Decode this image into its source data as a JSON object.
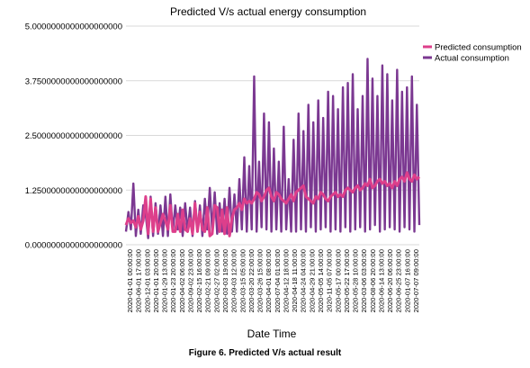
{
  "caption": "Figure 6. Predicted V/s actual result",
  "chart_data": {
    "type": "line",
    "title": "Predicted V/s actual energy consumption",
    "xlabel": "Date Time",
    "ylabel": "",
    "ylim": [
      0,
      5
    ],
    "yticks": [
      0,
      1.25,
      2.5,
      3.75,
      5
    ],
    "ytick_labels": [
      "0.0000000000000000000",
      "1.2500000000000000000",
      "2.5000000000000000000",
      "3.7500000000000000000",
      "5.0000000000000000000"
    ],
    "grid": true,
    "legend_position": "right",
    "x_tick_labels": [
      "2020-01-01 00:00:00",
      "2020-06-01 17:00:00",
      "2020-12-01 03:00:00",
      "2020-01-01 20:00:00",
      "2020-01-29 13:00:00",
      "2020-01-23 20:00:00",
      "2020-04-02 06:00:00",
      "2020-09-02 23:00:00",
      "2020-02-15 16:00:00",
      "2020-02-21 09:00:00",
      "2020-02-27 02:00:00",
      "2020-03-03 19:00:00",
      "2020-09-03 12:00:00",
      "2020-03-15 05:00:00",
      "2020-03-20 22:00:00",
      "2020-03-26 15:00:00",
      "2020-04-01 08:00:00",
      "2020-07-04 01:00:00",
      "2020-04-12 18:00:00",
      "2020-04-18 11:00:00",
      "2020-04-24 04:00:00",
      "2020-04-29 21:00:00",
      "2020-05-05 14:00:00",
      "2020-11-05 07:00:00",
      "2020-05-17 00:00:00",
      "2020-05-22 17:00:00",
      "2020-05-28 10:00:00",
      "2020-03-06 03:00:00",
      "2020-08-06 20:00:00",
      "2020-06-14 13:00:00",
      "2020-06-20 06:00:00",
      "2020-06-25 23:00:00",
      "2020-01-07 16:00:00",
      "2020-07-07 09:00:00"
    ],
    "series": [
      {
        "name": "Predicted consumption",
        "color": "#dd3f8b",
        "values": [
          0.45,
          0.6,
          0.5,
          0.55,
          0.4,
          0.65,
          0.35,
          0.55,
          1.1,
          0.25,
          1.05,
          0.3,
          0.85,
          0.3,
          0.5,
          0.7,
          0.55,
          0.35,
          0.9,
          0.3,
          0.3,
          0.7,
          0.3,
          0.8,
          0.35,
          0.3,
          0.6,
          0.25,
          0.95,
          0.3,
          0.75,
          0.35,
          0.3,
          0.85,
          0.2,
          0.25,
          0.9,
          0.85,
          0.3,
          0.8,
          0.25,
          0.85,
          0.2,
          0.6,
          0.8,
          0.85,
          0.95,
          0.8,
          1.05,
          0.95,
          1.0,
          0.95,
          1.05,
          1.2,
          1.15,
          1.0,
          1.1,
          1.25,
          1.3,
          1.1,
          1.0,
          1.2,
          1.15,
          1.05,
          1.0,
          0.95,
          1.05,
          1.15,
          1.0,
          1.2,
          1.25,
          1.3,
          1.35,
          1.1,
          1.05,
          1.0,
          0.95,
          1.1,
          1.05,
          1.2,
          1.15,
          1.05,
          1.0,
          1.1,
          1.15,
          1.2,
          1.1,
          1.15,
          1.1,
          1.25,
          1.3,
          1.25,
          1.2,
          1.3,
          1.35,
          1.25,
          1.3,
          1.4,
          1.35,
          1.5,
          1.3,
          1.35,
          1.45,
          1.5,
          1.4,
          1.45,
          1.35,
          1.4,
          1.3,
          1.45,
          1.35,
          1.5,
          1.55,
          1.45,
          1.65,
          1.5,
          1.45,
          1.6,
          1.5,
          1.55
        ]
      },
      {
        "name": "Actual consumption",
        "color": "#7b3891",
        "values": [
          0.3,
          0.75,
          0.35,
          1.4,
          0.2,
          0.8,
          0.25,
          0.9,
          0.7,
          0.15,
          1.1,
          0.2,
          0.95,
          0.25,
          0.9,
          0.2,
          1.1,
          0.2,
          1.15,
          0.3,
          0.9,
          0.35,
          0.85,
          0.2,
          0.95,
          0.3,
          0.85,
          0.2,
          1.0,
          0.3,
          0.9,
          0.2,
          1.05,
          0.35,
          1.3,
          0.3,
          1.2,
          0.25,
          0.95,
          0.3,
          1.05,
          0.25,
          1.3,
          0.3,
          1.15,
          0.3,
          1.5,
          0.35,
          2.0,
          0.3,
          1.8,
          0.35,
          3.85,
          0.3,
          1.9,
          0.4,
          3.0,
          0.35,
          2.8,
          0.3,
          2.2,
          0.35,
          1.9,
          0.3,
          2.7,
          0.35,
          1.5,
          0.3,
          2.4,
          0.3,
          3.0,
          0.35,
          2.6,
          0.3,
          3.2,
          0.4,
          2.8,
          0.3,
          3.3,
          0.35,
          2.9,
          0.4,
          3.5,
          0.3,
          3.4,
          0.35,
          3.1,
          0.3,
          3.6,
          0.4,
          3.7,
          0.3,
          3.9,
          0.35,
          3.1,
          0.4,
          3.4,
          0.3,
          4.25,
          0.35,
          3.8,
          0.45,
          3.4,
          0.3,
          4.1,
          0.35,
          3.9,
          0.4,
          3.3,
          0.35,
          4.0,
          0.3,
          3.5,
          0.4,
          3.6,
          0.35,
          3.85,
          0.3,
          3.2,
          0.45
        ]
      }
    ]
  }
}
